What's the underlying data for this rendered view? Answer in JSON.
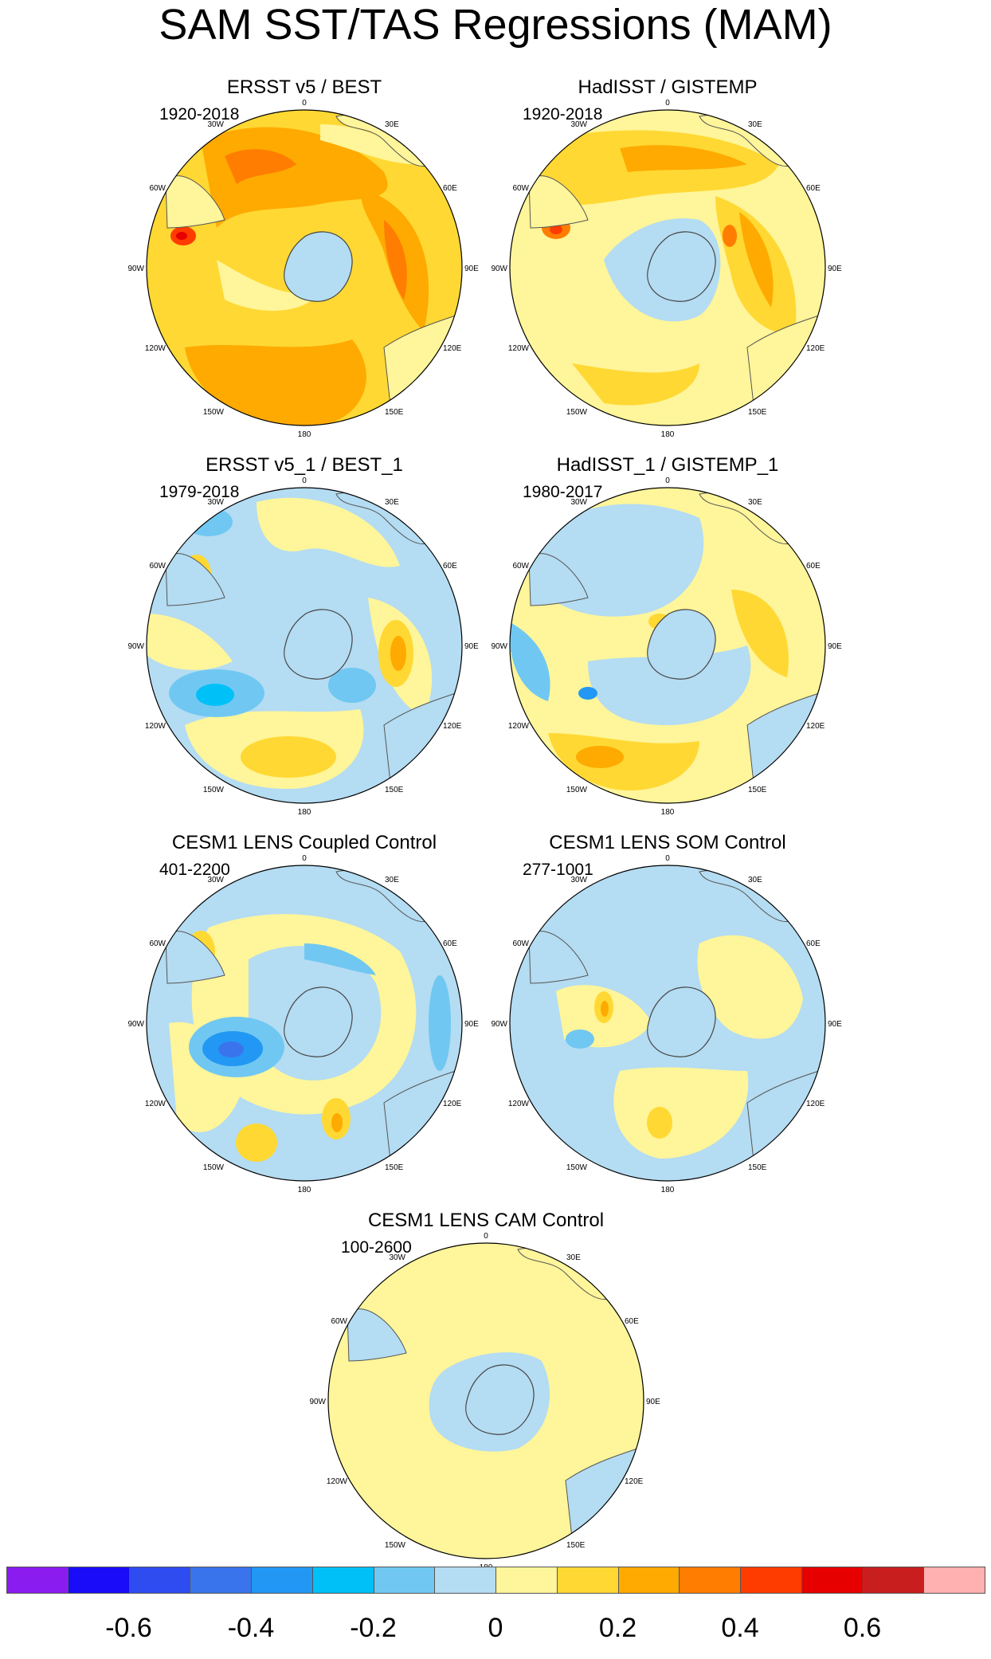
{
  "title": "SAM SST/TAS Regressions (MAM)",
  "lon_labels": {
    "top": "0",
    "tr": "30E",
    "tl": "30W",
    "rt": "60E",
    "lt": "60W",
    "r": "90E",
    "l": "90W",
    "rb": "120E",
    "lb": "120W",
    "br": "150E",
    "bl": "150W",
    "bottom": "180"
  },
  "panels": [
    {
      "title": "ERSST v5 / BEST",
      "period": "1920-2018"
    },
    {
      "title": "HadISST / GISTEMP",
      "period": "1920-2018"
    },
    {
      "title": "ERSST v5_1 / BEST_1",
      "period": "1979-2018"
    },
    {
      "title": "HadISST_1 / GISTEMP_1",
      "period": "1980-2017"
    },
    {
      "title": "CESM1 LENS Coupled Control",
      "period": "401-2200"
    },
    {
      "title": "CESM1 LENS SOM Control",
      "period": "277-1001"
    },
    {
      "title": "CESM1 LENS CAM Control",
      "period": "100-2600"
    }
  ],
  "colorbar": {
    "colors": [
      "#8a1cf0",
      "#1a0cf8",
      "#2e4cf0",
      "#3a74ec",
      "#2298f4",
      "#00c0f8",
      "#70c8f2",
      "#b4dcf2",
      "#fff59a",
      "#ffd833",
      "#ffaa00",
      "#ff7d00",
      "#ff3c00",
      "#e60000",
      "#c81e1e",
      "#ffb0b0"
    ],
    "tick_labels": [
      "-0.6",
      "-0.4",
      "-0.2",
      "0",
      "0.2",
      "0.4",
      "0.6"
    ]
  },
  "chart_data": {
    "type": "heatmap",
    "title": "SAM SST/TAS Regressions (MAM)",
    "projection": "south polar stereographic",
    "levels": [
      -0.7,
      -0.6,
      -0.5,
      -0.4,
      -0.3,
      -0.2,
      -0.1,
      0,
      0.1,
      0.2,
      0.3,
      0.4,
      0.5,
      0.6,
      0.7
    ],
    "colorbar_ticks": [
      -0.6,
      -0.4,
      -0.2,
      0,
      0.2,
      0.4,
      0.6
    ]
  }
}
